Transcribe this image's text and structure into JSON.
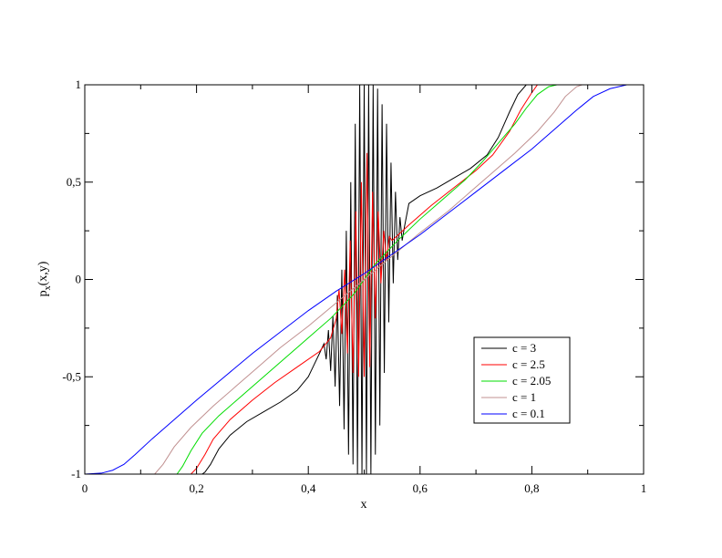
{
  "chart_data": {
    "type": "line",
    "xlabel": "x",
    "ylabel_main": "p",
    "ylabel_sub": "x",
    "ylabel_tail": "(x,y)",
    "xlim": [
      0,
      1
    ],
    "ylim": [
      -1,
      1
    ],
    "x_ticks": [
      {
        "value": 0,
        "label": "0"
      },
      {
        "value": 0.2,
        "label": "0,2"
      },
      {
        "value": 0.4,
        "label": "0,4"
      },
      {
        "value": 0.6,
        "label": "0,6"
      },
      {
        "value": 0.8,
        "label": "0,8"
      },
      {
        "value": 1,
        "label": "1"
      }
    ],
    "y_ticks": [
      {
        "value": -1,
        "label": "-1"
      },
      {
        "value": -0.5,
        "label": "-0,5"
      },
      {
        "value": 0,
        "label": "0"
      },
      {
        "value": 0.5,
        "label": "0,5"
      },
      {
        "value": 1,
        "label": "1"
      }
    ],
    "grid": false,
    "legend_position": "bottom-right",
    "series": [
      {
        "name": "c = 3",
        "color": "#000000",
        "points": [
          [
            0.19,
            -1
          ],
          [
            0.21,
            -1
          ],
          [
            0.215,
            -0.99
          ],
          [
            0.225,
            -0.95
          ],
          [
            0.24,
            -0.87
          ],
          [
            0.26,
            -0.8
          ],
          [
            0.29,
            -0.73
          ],
          [
            0.32,
            -0.68
          ],
          [
            0.35,
            -0.63
          ],
          [
            0.38,
            -0.57
          ],
          [
            0.4,
            -0.5
          ],
          [
            0.41,
            -0.44
          ],
          [
            0.42,
            -0.38
          ],
          [
            0.428,
            -0.33
          ],
          [
            0.432,
            -0.41
          ],
          [
            0.436,
            -0.26
          ],
          [
            0.44,
            -0.47
          ],
          [
            0.444,
            -0.19
          ],
          [
            0.448,
            -0.55
          ],
          [
            0.452,
            -0.08
          ],
          [
            0.456,
            -0.65
          ],
          [
            0.46,
            0.05
          ],
          [
            0.464,
            -0.77
          ],
          [
            0.468,
            0.25
          ],
          [
            0.472,
            -0.9
          ],
          [
            0.476,
            0.5
          ],
          [
            0.48,
            -0.95
          ],
          [
            0.484,
            0.8
          ],
          [
            0.488,
            -1
          ],
          [
            0.492,
            1
          ],
          [
            0.496,
            -1
          ],
          [
            0.5,
            1
          ],
          [
            0.504,
            -1
          ],
          [
            0.508,
            1
          ],
          [
            0.512,
            -1
          ],
          [
            0.516,
            1
          ],
          [
            0.52,
            -0.9
          ],
          [
            0.524,
            0.98
          ],
          [
            0.528,
            -0.75
          ],
          [
            0.532,
            0.9
          ],
          [
            0.536,
            -0.48
          ],
          [
            0.54,
            0.8
          ],
          [
            0.544,
            -0.22
          ],
          [
            0.548,
            0.6
          ],
          [
            0.552,
            -0.02
          ],
          [
            0.556,
            0.45
          ],
          [
            0.56,
            0.1
          ],
          [
            0.564,
            0.32
          ],
          [
            0.568,
            0.2
          ],
          [
            0.572,
            0.27
          ],
          [
            0.58,
            0.39
          ],
          [
            0.6,
            0.43
          ],
          [
            0.63,
            0.47
          ],
          [
            0.66,
            0.52
          ],
          [
            0.69,
            0.57
          ],
          [
            0.72,
            0.64
          ],
          [
            0.74,
            0.73
          ],
          [
            0.76,
            0.86
          ],
          [
            0.775,
            0.95
          ],
          [
            0.79,
            1
          ],
          [
            0.81,
            1
          ]
        ]
      },
      {
        "name": "c = 2.5",
        "color": "#ff0000",
        "points": [
          [
            0.17,
            -1
          ],
          [
            0.19,
            -1
          ],
          [
            0.2,
            -0.97
          ],
          [
            0.215,
            -0.9
          ],
          [
            0.23,
            -0.82
          ],
          [
            0.26,
            -0.72
          ],
          [
            0.3,
            -0.62
          ],
          [
            0.34,
            -0.53
          ],
          [
            0.38,
            -0.45
          ],
          [
            0.42,
            -0.37
          ],
          [
            0.44,
            -0.3
          ],
          [
            0.45,
            -0.2
          ],
          [
            0.455,
            -0.05
          ],
          [
            0.46,
            -0.28
          ],
          [
            0.465,
            0.05
          ],
          [
            0.47,
            -0.38
          ],
          [
            0.475,
            0.2
          ],
          [
            0.48,
            -0.48
          ],
          [
            0.485,
            0.35
          ],
          [
            0.49,
            -0.5
          ],
          [
            0.495,
            0.5
          ],
          [
            0.5,
            -0.5
          ],
          [
            0.505,
            0.65
          ],
          [
            0.51,
            -0.45
          ],
          [
            0.515,
            0.45
          ],
          [
            0.52,
            -0.2
          ],
          [
            0.525,
            0.35
          ],
          [
            0.53,
            -0.02
          ],
          [
            0.535,
            0.25
          ],
          [
            0.54,
            0.1
          ],
          [
            0.545,
            0.22
          ],
          [
            0.55,
            0.2
          ],
          [
            0.58,
            0.28
          ],
          [
            0.62,
            0.38
          ],
          [
            0.66,
            0.47
          ],
          [
            0.7,
            0.56
          ],
          [
            0.73,
            0.64
          ],
          [
            0.76,
            0.76
          ],
          [
            0.78,
            0.87
          ],
          [
            0.8,
            0.96
          ],
          [
            0.81,
            1
          ],
          [
            0.83,
            1
          ]
        ]
      },
      {
        "name": "c = 2.05",
        "color": "#00dd00",
        "points": [
          [
            0.14,
            -1
          ],
          [
            0.165,
            -1
          ],
          [
            0.175,
            -0.96
          ],
          [
            0.19,
            -0.88
          ],
          [
            0.21,
            -0.79
          ],
          [
            0.24,
            -0.7
          ],
          [
            0.28,
            -0.6
          ],
          [
            0.32,
            -0.5
          ],
          [
            0.36,
            -0.4
          ],
          [
            0.4,
            -0.3
          ],
          [
            0.44,
            -0.2
          ],
          [
            0.48,
            -0.08
          ],
          [
            0.5,
            0
          ],
          [
            0.52,
            0.08
          ],
          [
            0.56,
            0.2
          ],
          [
            0.6,
            0.31
          ],
          [
            0.64,
            0.41
          ],
          [
            0.68,
            0.51
          ],
          [
            0.71,
            0.6
          ],
          [
            0.74,
            0.7
          ],
          [
            0.77,
            0.8
          ],
          [
            0.79,
            0.88
          ],
          [
            0.81,
            0.95
          ],
          [
            0.83,
            0.99
          ],
          [
            0.845,
            1
          ],
          [
            0.86,
            1
          ]
        ]
      },
      {
        "name": "c = 1",
        "color": "#c09090",
        "points": [
          [
            0.1,
            -1
          ],
          [
            0.125,
            -1
          ],
          [
            0.14,
            -0.95
          ],
          [
            0.16,
            -0.86
          ],
          [
            0.19,
            -0.76
          ],
          [
            0.23,
            -0.65
          ],
          [
            0.27,
            -0.55
          ],
          [
            0.31,
            -0.45
          ],
          [
            0.35,
            -0.35
          ],
          [
            0.4,
            -0.24
          ],
          [
            0.45,
            -0.12
          ],
          [
            0.5,
            0
          ],
          [
            0.55,
            0.12
          ],
          [
            0.6,
            0.24
          ],
          [
            0.65,
            0.35
          ],
          [
            0.69,
            0.45
          ],
          [
            0.73,
            0.55
          ],
          [
            0.77,
            0.65
          ],
          [
            0.81,
            0.76
          ],
          [
            0.84,
            0.86
          ],
          [
            0.86,
            0.94
          ],
          [
            0.88,
            0.99
          ],
          [
            0.89,
            1
          ],
          [
            0.9,
            1
          ]
        ]
      },
      {
        "name": "c = 0.1",
        "color": "#0000ff",
        "points": [
          [
            0,
            -1
          ],
          [
            0.03,
            -0.995
          ],
          [
            0.05,
            -0.98
          ],
          [
            0.07,
            -0.95
          ],
          [
            0.09,
            -0.9
          ],
          [
            0.12,
            -0.82
          ],
          [
            0.16,
            -0.72
          ],
          [
            0.2,
            -0.62
          ],
          [
            0.25,
            -0.5
          ],
          [
            0.3,
            -0.38
          ],
          [
            0.35,
            -0.27
          ],
          [
            0.4,
            -0.16
          ],
          [
            0.45,
            -0.06
          ],
          [
            0.5,
            0.03
          ],
          [
            0.55,
            0.13
          ],
          [
            0.6,
            0.23
          ],
          [
            0.65,
            0.34
          ],
          [
            0.7,
            0.45
          ],
          [
            0.75,
            0.56
          ],
          [
            0.8,
            0.67
          ],
          [
            0.84,
            0.77
          ],
          [
            0.88,
            0.87
          ],
          [
            0.91,
            0.94
          ],
          [
            0.94,
            0.98
          ],
          [
            0.97,
            1
          ],
          [
            0.98,
            1
          ]
        ]
      }
    ]
  }
}
